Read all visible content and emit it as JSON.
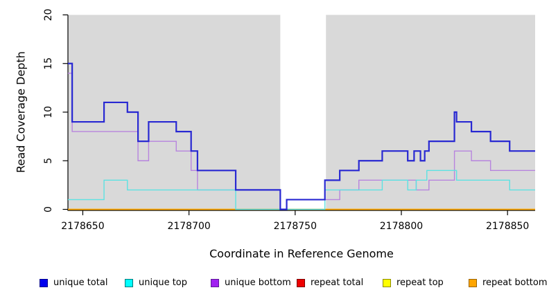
{
  "chart_data": {
    "type": "line",
    "subtype": "step-after",
    "title": "",
    "xlabel": "Coordinate in Reference Genome",
    "ylabel": "Read Coverage Depth",
    "xlim": [
      2178643,
      2178863
    ],
    "ylim": [
      0,
      20
    ],
    "x_ticks": [
      2178650,
      2178700,
      2178750,
      2178800,
      2178850
    ],
    "y_ticks": [
      0,
      5,
      10,
      15,
      20
    ],
    "grid": false,
    "plot_background": "#d9d9d9",
    "page_background": "#ffffff",
    "axis_color": "#000000",
    "gap_region": {
      "x0": 2178743,
      "x1": 2178764.5,
      "color": "#ffffff"
    },
    "series": [
      {
        "name": "repeat total",
        "color": "#dd0000",
        "width": 1.5,
        "points": [
          [
            2178643,
            0
          ],
          [
            2178863,
            0
          ]
        ]
      },
      {
        "name": "repeat top",
        "color": "#ffff00",
        "width": 1.5,
        "points": [
          [
            2178643,
            0
          ],
          [
            2178863,
            0
          ]
        ]
      },
      {
        "name": "repeat bottom",
        "color": "#ffa500",
        "width": 1.6,
        "points": [
          [
            2178643,
            0
          ],
          [
            2178863,
            0
          ]
        ]
      },
      {
        "name": "unique bottom",
        "color": "#b784de",
        "width": 1.4,
        "points": [
          [
            2178643,
            14
          ],
          [
            2178645,
            8
          ],
          [
            2178676,
            5
          ],
          [
            2178681,
            7
          ],
          [
            2178694,
            6
          ],
          [
            2178701,
            4
          ],
          [
            2178704,
            2
          ],
          [
            2178743,
            0
          ],
          [
            2178746,
            1
          ],
          [
            2178771,
            2
          ],
          [
            2178780,
            3
          ],
          [
            2178807,
            2
          ],
          [
            2178813,
            3
          ],
          [
            2178825,
            6
          ],
          [
            2178833,
            5
          ],
          [
            2178842,
            4
          ],
          [
            2178863,
            4
          ]
        ]
      },
      {
        "name": "unique top",
        "color": "#5ce2e2",
        "width": 1.4,
        "points": [
          [
            2178643,
            1
          ],
          [
            2178660,
            3
          ],
          [
            2178671,
            2
          ],
          [
            2178722,
            0
          ],
          [
            2178764,
            2
          ],
          [
            2178791,
            3
          ],
          [
            2178803,
            2
          ],
          [
            2178807,
            3
          ],
          [
            2178812,
            4
          ],
          [
            2178826,
            3
          ],
          [
            2178851,
            2
          ],
          [
            2178863,
            2
          ]
        ]
      },
      {
        "name": "unique total",
        "color": "#2828d2",
        "width": 2.2,
        "points": [
          [
            2178643,
            15
          ],
          [
            2178645,
            9
          ],
          [
            2178660,
            11
          ],
          [
            2178671,
            10
          ],
          [
            2178676,
            7
          ],
          [
            2178681,
            9
          ],
          [
            2178694,
            8
          ],
          [
            2178701,
            6
          ],
          [
            2178704,
            4
          ],
          [
            2178722,
            2
          ],
          [
            2178743,
            0
          ],
          [
            2178746,
            1
          ],
          [
            2178764,
            3
          ],
          [
            2178771,
            4
          ],
          [
            2178780,
            5
          ],
          [
            2178791,
            6
          ],
          [
            2178803,
            5
          ],
          [
            2178806,
            6
          ],
          [
            2178809,
            5
          ],
          [
            2178811,
            6
          ],
          [
            2178813,
            7
          ],
          [
            2178825,
            10
          ],
          [
            2178826,
            9
          ],
          [
            2178833,
            8
          ],
          [
            2178842,
            7
          ],
          [
            2178851,
            6
          ],
          [
            2178863,
            6
          ]
        ]
      }
    ],
    "legend_position": "bottom",
    "legend": [
      {
        "label": "unique total",
        "fill": "#0000ee",
        "border": "#00008b"
      },
      {
        "label": "unique top",
        "fill": "#00ffff",
        "border": "#007a7a"
      },
      {
        "label": "unique bottom",
        "fill": "#a020f0",
        "border": "#5e189a"
      },
      {
        "label": "repeat total",
        "fill": "#ee0000",
        "border": "#7a0000"
      },
      {
        "label": "repeat top",
        "fill": "#ffff00",
        "border": "#8b8b00"
      },
      {
        "label": "repeat bottom",
        "fill": "#ffa500",
        "border": "#9a6400"
      }
    ]
  }
}
